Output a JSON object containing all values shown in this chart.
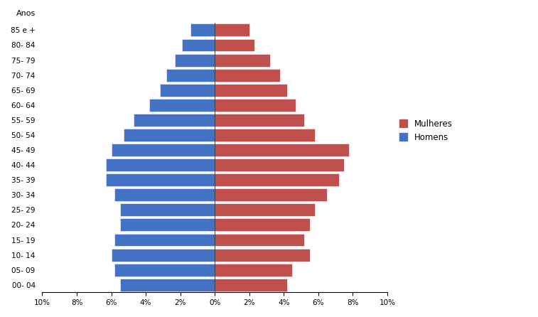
{
  "age_groups": [
    "00- 04",
    "05- 09",
    "10- 14",
    "15- 19",
    "20- 24",
    "25- 29",
    "30- 34",
    "35- 39",
    "40- 44",
    "45- 49",
    "50- 54",
    "55- 59",
    "60- 64",
    "65- 69",
    "70- 74",
    "75- 79",
    "80- 84",
    "85 e +"
  ],
  "homens": [
    5.5,
    5.8,
    6.0,
    5.8,
    5.5,
    5.5,
    5.8,
    6.3,
    6.3,
    6.0,
    5.3,
    4.7,
    3.8,
    3.2,
    2.8,
    2.3,
    1.9,
    1.4
  ],
  "mulheres": [
    4.2,
    4.5,
    5.5,
    5.2,
    5.5,
    5.8,
    6.5,
    7.2,
    7.5,
    7.8,
    5.8,
    5.2,
    4.7,
    4.2,
    3.8,
    3.2,
    2.3,
    2.0
  ],
  "homens_color": "#4472C4",
  "mulheres_color": "#C0504D",
  "background_color": "#FFFFFF",
  "legend_mulheres": "Mulheres",
  "legend_homens": "Homens",
  "anos_label": "Anos"
}
